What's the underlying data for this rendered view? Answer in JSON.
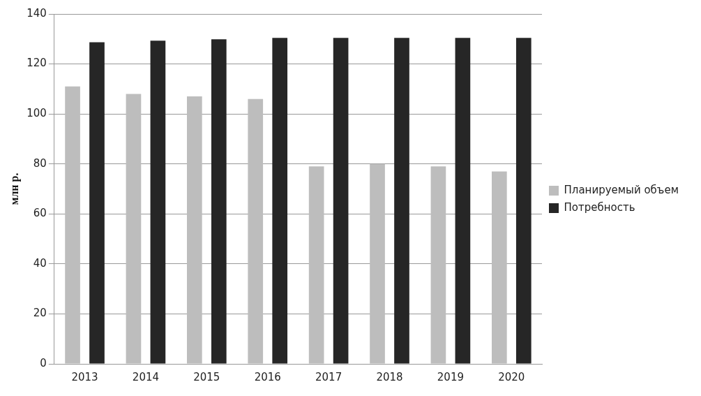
{
  "chart_data": {
    "type": "bar",
    "ylabel": "млн р.",
    "categories": [
      "2013",
      "2014",
      "2015",
      "2016",
      "2017",
      "2018",
      "2019",
      "2020"
    ],
    "series": [
      {
        "name": "Планируемый объем",
        "color": "#bdbdbd",
        "values": [
          111,
          108,
          107,
          106,
          79,
          80,
          79,
          77
        ]
      },
      {
        "name": "Потребность",
        "color": "#262626",
        "values": [
          128.7,
          129.3,
          129.9,
          130.4,
          130.4,
          130.4,
          130.4,
          130.4
        ]
      }
    ],
    "ylim": [
      0,
      140
    ],
    "yticks": [
      0,
      20,
      40,
      60,
      80,
      100,
      120,
      140
    ],
    "grid": "y",
    "legend": "right"
  }
}
